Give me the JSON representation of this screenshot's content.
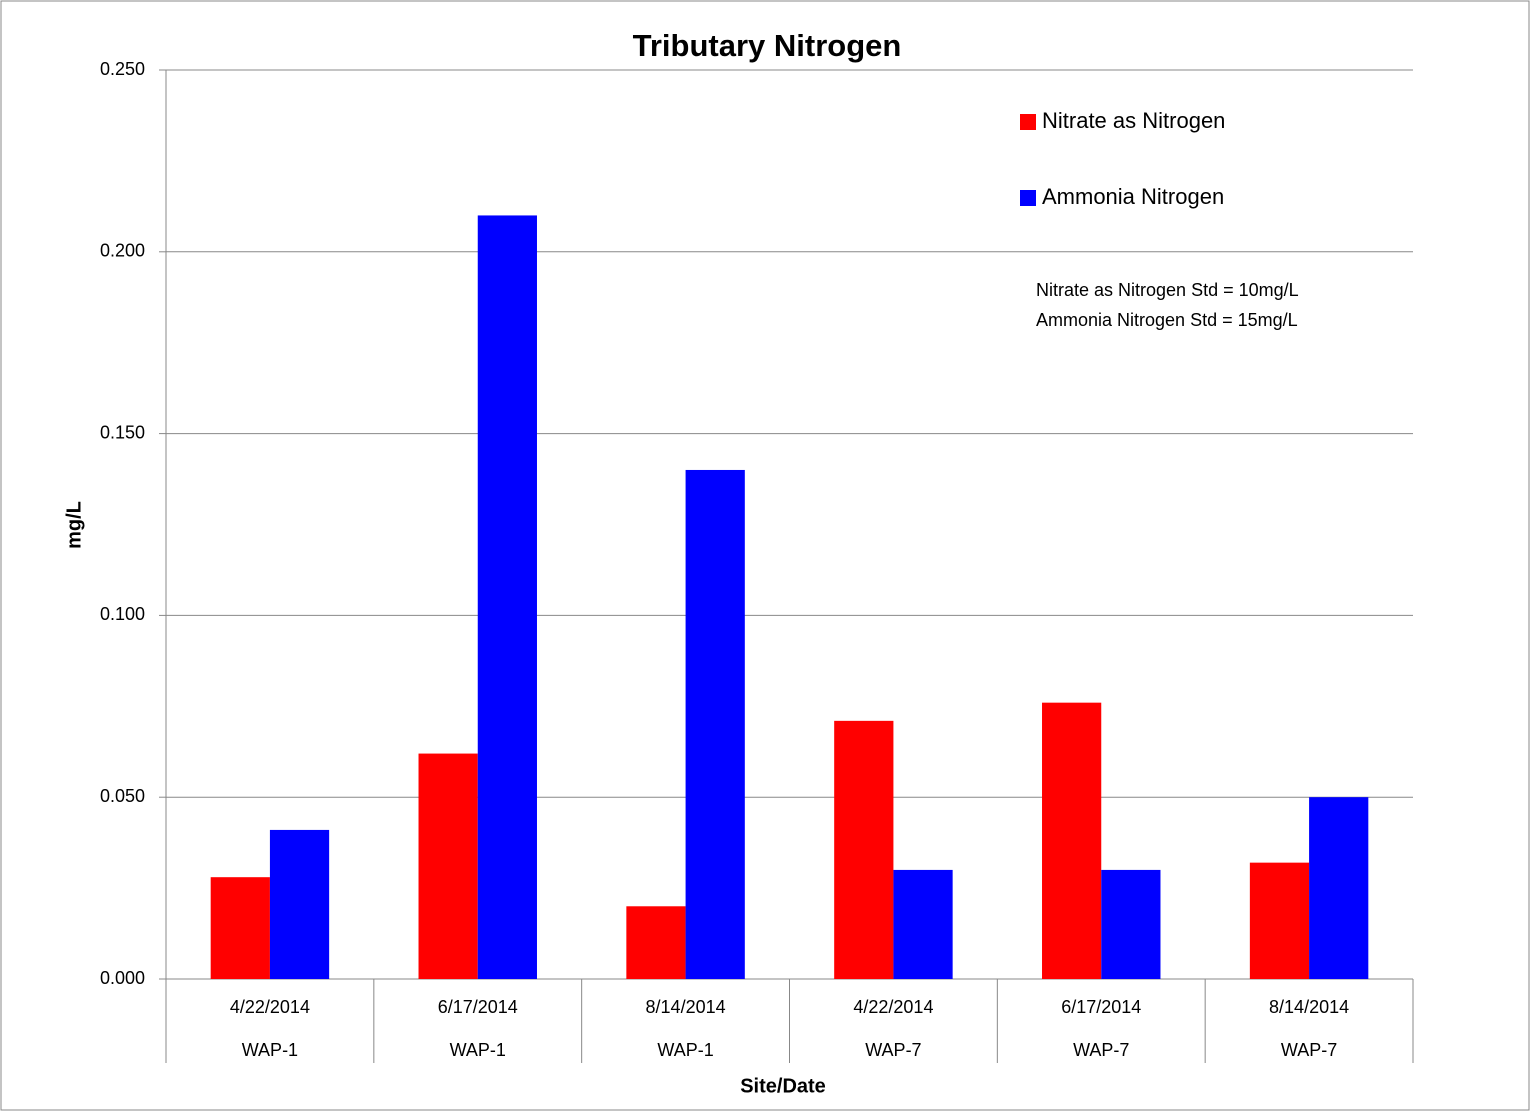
{
  "chart_data": {
    "type": "bar",
    "title": "Tributary Nitrogen",
    "x_label": "Site/Date",
    "y_label": "mg/L",
    "categories": [
      "4/22/2014",
      "6/17/2014",
      "8/14/2014",
      "4/22/2014",
      "6/17/2014",
      "8/14/2014"
    ],
    "sites": [
      "WAP-1",
      "WAP-1",
      "WAP-1",
      "WAP-7",
      "WAP-7",
      "WAP-7"
    ],
    "series": [
      {
        "name": "Nitrate as Nitrogen",
        "color": "#ff0000",
        "values": [
          0.028,
          0.062,
          0.02,
          0.071,
          0.076,
          0.032
        ]
      },
      {
        "name": "Ammonia Nitrogen",
        "color": "#0000ff",
        "values": [
          0.041,
          0.21,
          0.14,
          0.03,
          0.03,
          0.05
        ]
      }
    ],
    "annotations": [
      "Nitrate as Nitrogen Std = 10mg/L",
      "Ammonia Nitrogen Std = 15mg/L"
    ],
    "ylim": [
      0,
      0.25
    ],
    "yticks": [
      {
        "value": 0,
        "label": "0.000"
      },
      {
        "value": 0.05,
        "label": "0.050"
      },
      {
        "value": 0.1,
        "label": "0.100"
      },
      {
        "value": 0.15,
        "label": "0.150"
      },
      {
        "value": 0.2,
        "label": "0.200"
      },
      {
        "value": 0.25,
        "label": "0.250"
      }
    ],
    "grid": true,
    "legend_position": "top-right"
  }
}
